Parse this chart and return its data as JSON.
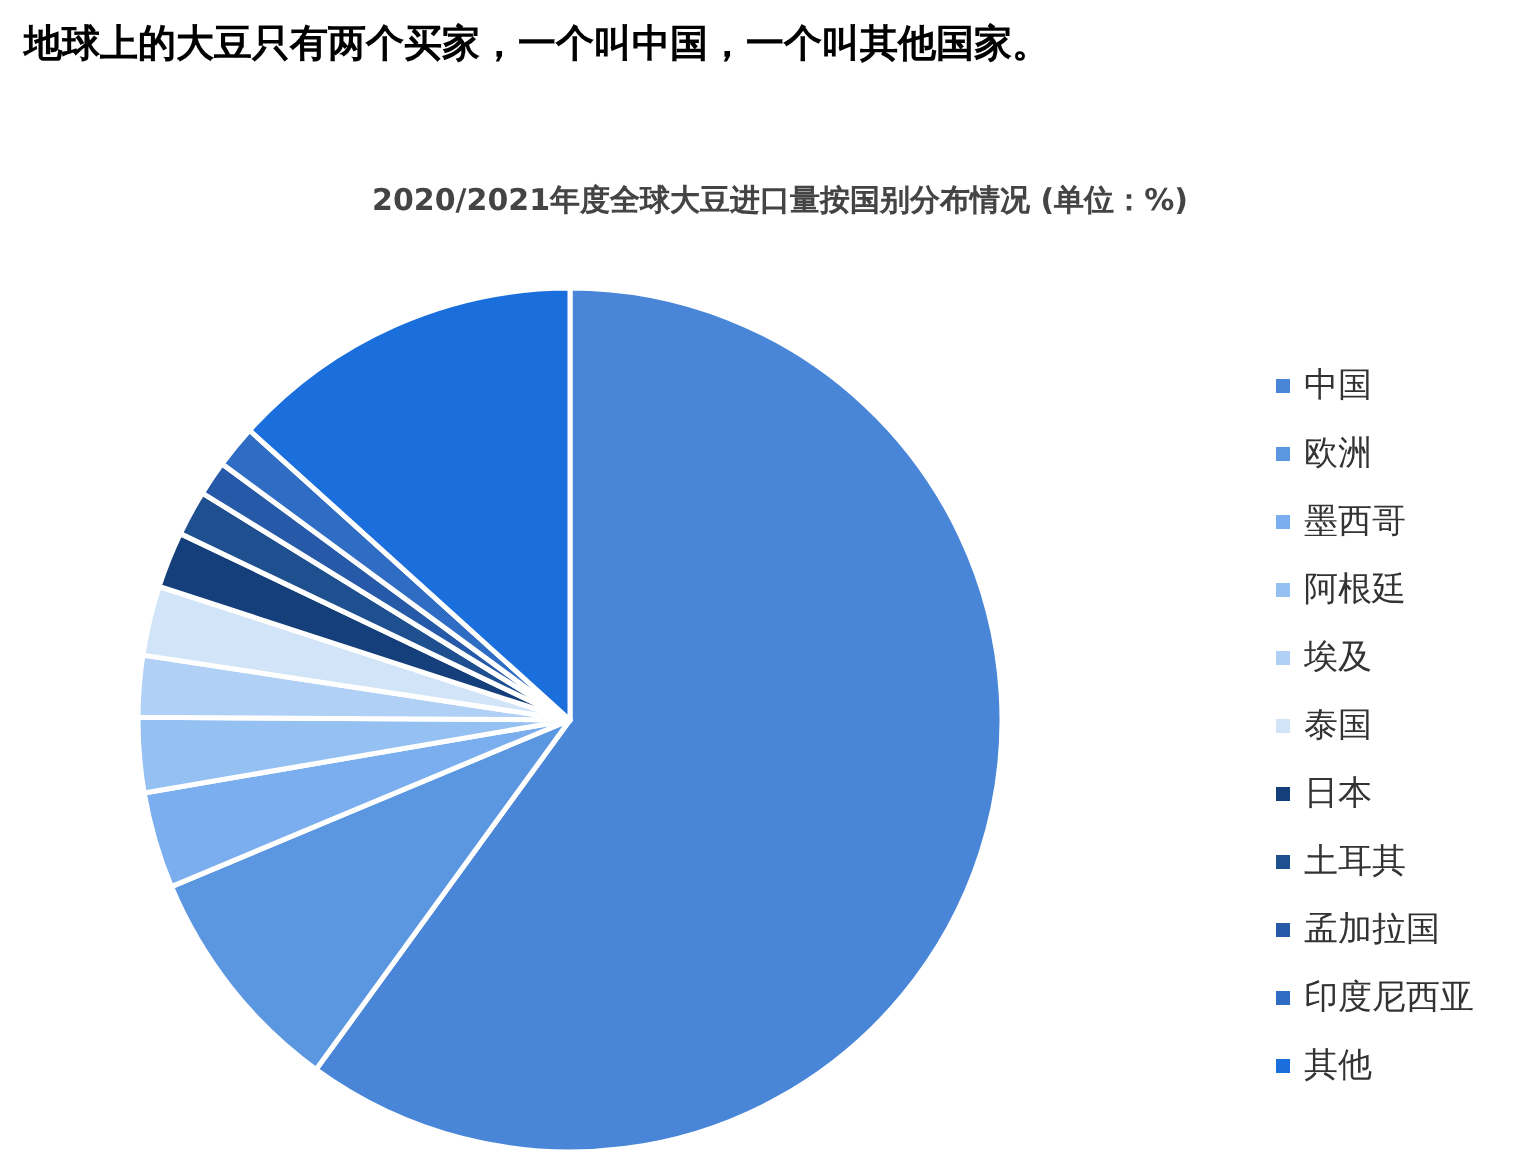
{
  "chart_data": {
    "type": "pie",
    "title": "地球上的大豆只有两个买家，一个叫中国，一个叫其他国家。",
    "subtitle": "2020/2021年度全球大豆进口量按国别分布情况 (单位：%)",
    "categories": [
      "中国",
      "欧洲",
      "墨西哥",
      "阿根廷",
      "埃及",
      "泰国",
      "日本",
      "土耳其",
      "孟加拉国",
      "印度尼西亚",
      "其他"
    ],
    "values": [
      60.0,
      8.7,
      3.6,
      2.8,
      2.3,
      2.6,
      2.1,
      1.7,
      1.3,
      1.6,
      13.3
    ],
    "colors": [
      "#4a86d8",
      "#5b96e0",
      "#7aaeee",
      "#95c0f2",
      "#b0d0f5",
      "#d2e4f8",
      "#153f7a",
      "#1e4f8f",
      "#2659a8",
      "#2f6cc4",
      "#1a6fdc"
    ],
    "legend": "right"
  }
}
